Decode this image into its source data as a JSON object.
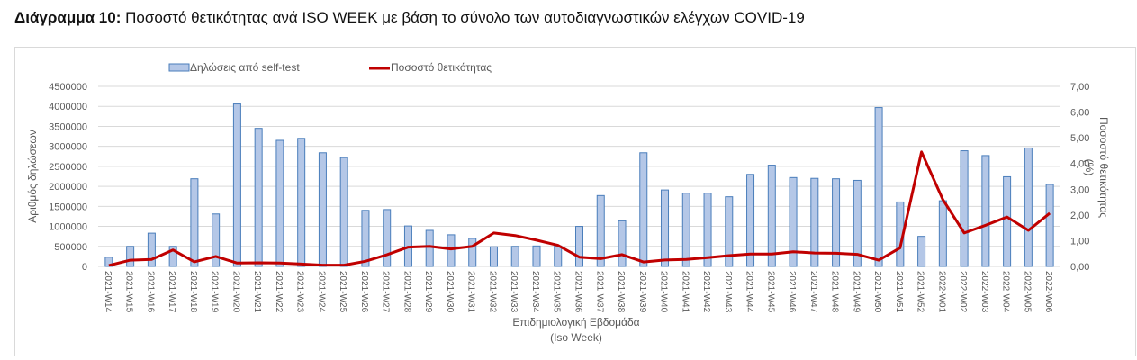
{
  "figure": {
    "label": "Διάγραμμα 10:",
    "title": "Ποσοστό θετικότητας ανά ISO WEEK με βάση το σύνολο των αυτοδιαγνωστικών ελέγχων COVID-19"
  },
  "colors": {
    "bar_fill": "#b4c7e7",
    "bar_stroke": "#4a7ebb",
    "line": "#c00000",
    "grid": "#d9d9d9",
    "axis_text": "#595959"
  },
  "chart_data": {
    "type": "bar+line",
    "title": "Ποσοστό θετικότητας ανά ISO WEEK με βάση το σύνολο των αυτοδιαγνωστικών ελέγχων COVID-19",
    "xlabel": "Επιδημιολογική Εβδομάδα",
    "xlabel_sub": "(Iso Week)",
    "ylabel": "Αριθμός δηλώσεων",
    "y2label": "Ποσοστό θετικότητας",
    "y2label_sub": "(%)",
    "ylim": [
      0,
      4500000
    ],
    "y2lim": [
      0,
      7
    ],
    "yticks": [
      "0",
      "500000",
      "1000000",
      "1500000",
      "2000000",
      "2500000",
      "3000000",
      "3500000",
      "4000000",
      "4500000"
    ],
    "y2ticks": [
      "0,00",
      "1,00",
      "2,00",
      "3,00",
      "4,00",
      "5,00",
      "6,00",
      "7,00"
    ],
    "grid": true,
    "legend_position": "top",
    "categories": [
      "2021-W14",
      "2021-W15",
      "2021-W16",
      "2021-W17",
      "2021-W18",
      "2021-W19",
      "2021-W20",
      "2021-W21",
      "2021-W22",
      "2021-W23",
      "2021-W24",
      "2021-W25",
      "2021-W26",
      "2021-W27",
      "2021-W28",
      "2021-W29",
      "2021-W30",
      "2021-W31",
      "2021-W32",
      "2021-W33",
      "2021-W34",
      "2021-W35",
      "2021-W36",
      "2021-W37",
      "2021-W38",
      "2021-W39",
      "2021-W40",
      "2021-W41",
      "2021-W42",
      "2021-W43",
      "2021-W44",
      "2021-W45",
      "2021-W46",
      "2021-W47",
      "2021-W48",
      "2021-W49",
      "2021-W50",
      "2021-W51",
      "2021-W52",
      "2022-W01",
      "2022-W02",
      "2022-W03",
      "2022-W04",
      "2022-W05",
      "2022-W06"
    ],
    "series": [
      {
        "name": "Δηλώσεις από self-test",
        "type": "bar",
        "axis": "left",
        "values": [
          230000,
          500000,
          830000,
          500000,
          2190000,
          1310000,
          4060000,
          3450000,
          3150000,
          3200000,
          2840000,
          2720000,
          1400000,
          1420000,
          1010000,
          900000,
          790000,
          700000,
          490000,
          500000,
          510000,
          510000,
          1000000,
          1770000,
          1140000,
          2840000,
          1910000,
          1830000,
          1830000,
          1740000,
          2300000,
          2530000,
          2220000,
          2200000,
          2190000,
          2150000,
          3970000,
          1610000,
          750000,
          1640000,
          2890000,
          2770000,
          2240000,
          2960000,
          2050000
        ]
      },
      {
        "name": "Ποσοστό θετικότητας",
        "type": "line",
        "axis": "right",
        "values": [
          0.04,
          0.24,
          0.27,
          0.64,
          0.18,
          0.39,
          0.13,
          0.14,
          0.13,
          0.09,
          0.05,
          0.05,
          0.2,
          0.45,
          0.75,
          0.78,
          0.68,
          0.78,
          1.3,
          1.2,
          1.02,
          0.82,
          0.36,
          0.3,
          0.46,
          0.17,
          0.25,
          0.27,
          0.34,
          0.42,
          0.48,
          0.48,
          0.57,
          0.52,
          0.51,
          0.47,
          0.24,
          0.72,
          4.45,
          2.6,
          1.3,
          1.6,
          1.92,
          1.4,
          2.07
        ]
      }
    ]
  }
}
